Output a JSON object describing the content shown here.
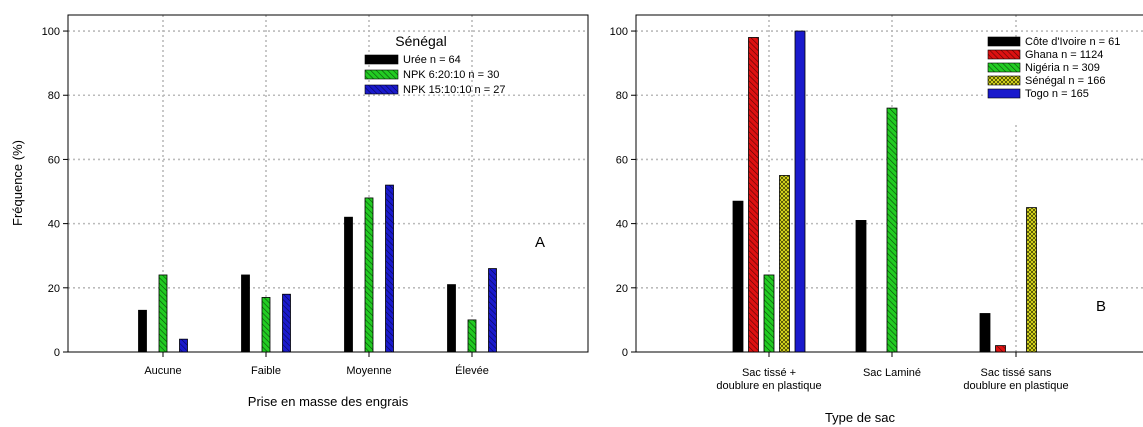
{
  "chart_data": [
    {
      "type": "bar",
      "panel_letter": "A",
      "legend_title": "Sénégal",
      "xlabel": "Prise en masse des engrais",
      "ylabel": "Fréquence (%)",
      "ylim": [
        0,
        105
      ],
      "yticks": [
        0,
        20,
        40,
        60,
        80,
        100
      ],
      "grid": true,
      "legend_position": "top-right",
      "categories": [
        "Aucune",
        "Faible",
        "Moyenne",
        "Élevée"
      ],
      "series": [
        {
          "name": "Urée n = 64",
          "color": "#000000",
          "pattern": "solid",
          "values": [
            13,
            24,
            42,
            21
          ]
        },
        {
          "name": "NPK 6:20:10 n = 30",
          "color": "#22cc22",
          "pattern": "hatch",
          "values": [
            24,
            17,
            48,
            10
          ]
        },
        {
          "name": "NPK 15:10:10 n = 27",
          "color": "#1a1acc",
          "pattern": "hatch",
          "values": [
            4,
            18,
            52,
            26
          ]
        }
      ]
    },
    {
      "type": "bar",
      "panel_letter": "B",
      "xlabel": "Type de sac",
      "ylabel": "",
      "ylim": [
        0,
        105
      ],
      "yticks": [
        0,
        20,
        40,
        60,
        80,
        100
      ],
      "grid": true,
      "legend_position": "top-right",
      "categories": [
        [
          "Sac tissé +",
          "doublure en plastique"
        ],
        [
          "Sac Laminé"
        ],
        [
          "Sac tissé sans",
          "doublure en plastique"
        ]
      ],
      "series": [
        {
          "name": "Côte d'Ivoire n = 61",
          "color": "#000000",
          "pattern": "solid",
          "values": [
            47,
            41,
            12
          ]
        },
        {
          "name": "Ghana n = 1124",
          "color": "#dd1111",
          "pattern": "hatch",
          "values": [
            98,
            0,
            2
          ]
        },
        {
          "name": "Nigéria n = 309",
          "color": "#22cc22",
          "pattern": "hatch",
          "values": [
            24,
            76,
            0
          ]
        },
        {
          "name": "Sénégal n = 166",
          "color": "#eeee22",
          "pattern": "cross",
          "values": [
            55,
            0,
            45
          ]
        },
        {
          "name": "Togo n = 165",
          "color": "#1a1acc",
          "pattern": "solid",
          "values": [
            100,
            0,
            0
          ]
        }
      ]
    }
  ]
}
